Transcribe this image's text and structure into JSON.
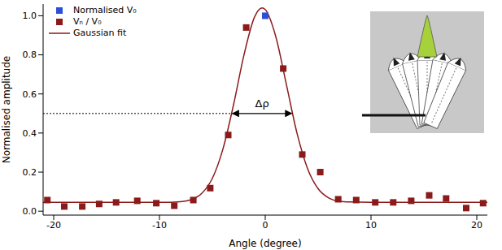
{
  "chart_data": {
    "type": "scatter",
    "xlabel": "Angle (degree)",
    "ylabel": "Normalised amplitude",
    "xlim": [
      -21,
      21
    ],
    "xticks": [
      -20,
      -10,
      0,
      10,
      20
    ],
    "ylim": [
      -0.02,
      1.06
    ],
    "yticks": [
      {
        "value": 0,
        "label": "0.0"
      },
      {
        "value": 0.2,
        "label": "0.2"
      },
      {
        "value": 0.4,
        "label": "0.4"
      },
      {
        "value": 0.6,
        "label": "0.6"
      },
      {
        "value": 0.8,
        "label": "0.8"
      },
      {
        "value": 1,
        "label": "1.0"
      }
    ],
    "legend": "upper left",
    "series": [
      {
        "name": "Normalised V₀",
        "type": "scatter",
        "marker": "square",
        "color": "#2b4fd8",
        "x": [
          0
        ],
        "values": [
          1.0
        ]
      },
      {
        "name": "Vₙ / V₀",
        "type": "scatter",
        "marker": "square",
        "color": "#8b1a1a",
        "x": [
          -20.6,
          -19.0,
          -17.3,
          -15.7,
          -14.1,
          -12.1,
          -10.3,
          -8.6,
          -6.8,
          -5.2,
          -3.5,
          -1.8,
          1.7,
          3.5,
          5.2,
          6.9,
          8.6,
          10.4,
          12.1,
          13.8,
          15.5,
          17.1,
          19.0,
          20.6
        ],
        "values": [
          0.057,
          0.024,
          0.024,
          0.037,
          0.045,
          0.053,
          0.041,
          0.028,
          0.057,
          0.118,
          0.39,
          0.94,
          0.73,
          0.29,
          0.2,
          0.061,
          0.057,
          0.045,
          0.045,
          0.053,
          0.081,
          0.065,
          0.016,
          0.041
        ]
      },
      {
        "name": "Gaussian fit",
        "type": "line",
        "color": "#8b1a1a",
        "x": [
          -21,
          -10,
          -8,
          -7,
          -6,
          -5,
          -4,
          -3,
          -2,
          -1,
          -0.3,
          0,
          1,
          2,
          3,
          4,
          5,
          6,
          7,
          8,
          10,
          21
        ],
        "values": [
          0.045,
          0.045,
          0.049,
          0.059,
          0.091,
          0.168,
          0.318,
          0.544,
          0.802,
          0.995,
          1.04,
          1.032,
          0.893,
          0.648,
          0.4,
          0.218,
          0.115,
          0.068,
          0.051,
          0.047,
          0.045,
          0.045
        ]
      }
    ],
    "annotations": [
      {
        "text": "Δρ",
        "y": 0.5,
        "x": [
          -3.1,
          2.5
        ]
      }
    ]
  }
}
